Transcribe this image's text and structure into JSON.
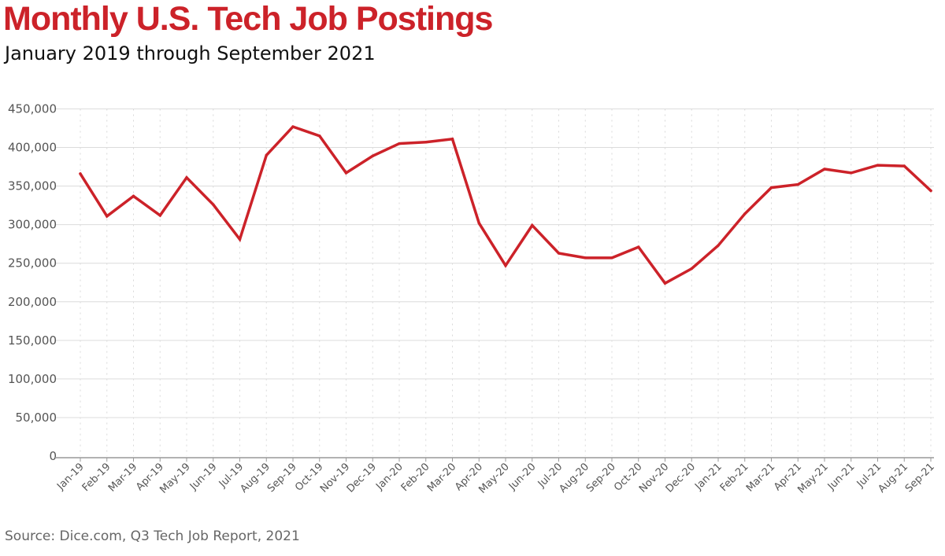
{
  "chart_data": {
    "type": "line",
    "title": "Monthly U.S. Tech Job Postings",
    "subtitle": "January 2019 through September 2021",
    "source": "Source: Dice.com, Q3 Tech Job Report, 2021",
    "xlabel": "",
    "ylabel": "",
    "ylim": [
      0,
      450000
    ],
    "yticks": [
      "0",
      "50,000",
      "100,000",
      "150,000",
      "200,000",
      "250,000",
      "300,000",
      "350,000",
      "400,000",
      "450,000"
    ],
    "grid": true,
    "line_color": "#cc2229",
    "categories": [
      "Jan-19",
      "Feb-19",
      "Mar-19",
      "Apr-19",
      "May-19",
      "Jun-19",
      "Jul-19",
      "Aug-19",
      "Sep-19",
      "Oct-19",
      "Nov-19",
      "Dec-19",
      "Jan-20",
      "Feb-20",
      "Mar-20",
      "Apr-20",
      "May-20",
      "Jun-20",
      "Jul-20",
      "Aug-20",
      "Sep-20",
      "Oct-20",
      "Nov-20",
      "Dec-20",
      "Jan-21",
      "Feb-21",
      "Mar-21",
      "Apr-21",
      "May-21",
      "Jun-21",
      "Jul-21",
      "Aug-21",
      "Sep-21"
    ],
    "values": [
      366000,
      311000,
      337000,
      312000,
      361000,
      326000,
      281000,
      390000,
      427000,
      415000,
      367000,
      389000,
      405000,
      407000,
      411000,
      302000,
      247000,
      299000,
      263000,
      257000,
      257000,
      271000,
      224000,
      243000,
      273000,
      314000,
      348000,
      352000,
      372000,
      367000,
      377000,
      376000,
      344000
    ]
  }
}
